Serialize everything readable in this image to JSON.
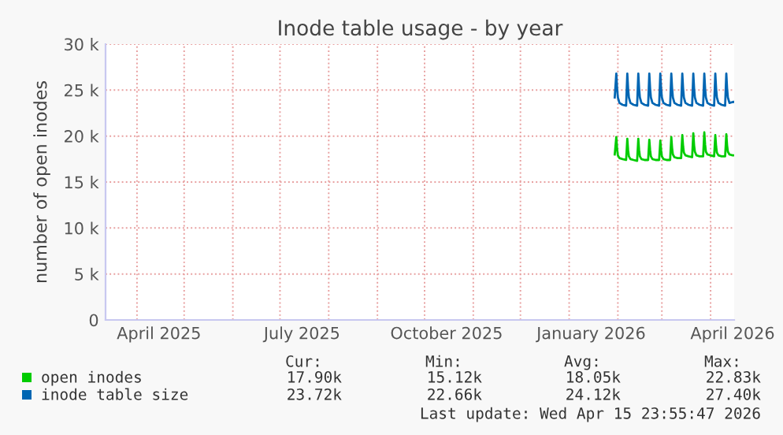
{
  "chart_data": {
    "type": "line",
    "title": "Inode table usage - by year",
    "ylabel": "number of open inodes",
    "x": [
      "2026-01-30T00:00",
      "2026-01-31T00:00",
      "2026-01-31T12:00",
      "2026-02-01",
      "2026-02-02",
      "2026-02-04",
      "2026-02-06T06:00",
      "2026-02-07T00:00",
      "2026-02-07T12:00",
      "2026-02-08",
      "2026-02-09",
      "2026-02-11",
      "2026-02-13T06:00",
      "2026-02-14T00:00",
      "2026-02-14T12:00",
      "2026-02-15",
      "2026-02-16",
      "2026-02-18",
      "2026-02-20T06:00",
      "2026-02-21T00:00",
      "2026-02-21T12:00",
      "2026-02-22",
      "2026-02-23",
      "2026-02-25",
      "2026-02-27T06:00",
      "2026-02-28T00:00",
      "2026-02-28T12:00",
      "2026-03-01",
      "2026-03-02",
      "2026-03-04",
      "2026-03-06T06:00",
      "2026-03-07T00:00",
      "2026-03-07T12:00",
      "2026-03-08",
      "2026-03-09",
      "2026-03-11",
      "2026-03-13T06:00",
      "2026-03-14T00:00",
      "2026-03-14T12:00",
      "2026-03-15",
      "2026-03-16",
      "2026-03-18",
      "2026-03-20T06:00",
      "2026-03-21T00:00",
      "2026-03-21T12:00",
      "2026-03-22",
      "2026-03-23",
      "2026-03-25",
      "2026-03-27T06:00",
      "2026-03-28T00:00",
      "2026-03-28T12:00",
      "2026-03-29",
      "2026-03-30",
      "2026-04-01",
      "2026-04-03T06:00",
      "2026-04-04T00:00",
      "2026-04-04T12:00",
      "2026-04-05",
      "2026-04-06",
      "2026-04-08",
      "2026-04-10T06:00",
      "2026-04-11T00:00",
      "2026-04-11T12:00",
      "2026-04-12",
      "2026-04-13",
      "2026-04-15",
      "2026-04-15T23:00"
    ],
    "series": [
      {
        "name": "open inodes",
        "color": "#00cc00",
        "values": [
          18000,
          19900,
          18600,
          17900,
          17600,
          17500,
          17400,
          19700,
          18500,
          17800,
          17500,
          17400,
          17300,
          19700,
          18500,
          17800,
          17500,
          17400,
          17400,
          19600,
          18500,
          17800,
          17500,
          17400,
          17400,
          19500,
          18500,
          17800,
          17500,
          17400,
          17400,
          19900,
          18700,
          18000,
          17700,
          17600,
          17600,
          20100,
          18900,
          18200,
          17900,
          17800,
          17700,
          20300,
          19000,
          18300,
          17900,
          17800,
          17800,
          20400,
          19100,
          18300,
          18000,
          17900,
          17800,
          20100,
          18900,
          18200,
          17900,
          17800,
          17800,
          20200,
          19000,
          18300,
          18000,
          17900,
          17900
        ]
      },
      {
        "name": "inode table size",
        "color": "#0066b3",
        "values": [
          24200,
          26800,
          25200,
          24200,
          23600,
          23400,
          23300,
          26800,
          25200,
          24200,
          23600,
          23400,
          23300,
          26800,
          25200,
          24200,
          23600,
          23400,
          23300,
          26800,
          25200,
          24200,
          23600,
          23400,
          23300,
          26800,
          25200,
          24200,
          23600,
          23400,
          23300,
          26800,
          25200,
          24200,
          23600,
          23400,
          23300,
          26800,
          25200,
          24200,
          23600,
          23400,
          23300,
          26800,
          25200,
          24200,
          23600,
          23400,
          23300,
          26800,
          25200,
          24200,
          23600,
          23400,
          23300,
          26800,
          25200,
          24200,
          23600,
          23400,
          23300,
          26800,
          25200,
          24200,
          23600,
          23700,
          23720
        ]
      }
    ],
    "xlim": [
      "2025-03-11T23:55",
      "2026-04-15T23:55"
    ],
    "xticks": [
      {
        "value": "2025-04-15",
        "label": "April 2025"
      },
      {
        "value": "2025-07-15",
        "label": "July 2025"
      },
      {
        "value": "2025-10-15",
        "label": "October 2025"
      },
      {
        "value": "2026-01-15",
        "label": "January 2026"
      },
      {
        "value": "2026-04-15",
        "label": "April 2026"
      }
    ],
    "ylim": [
      0,
      30000
    ],
    "yticks": [
      0,
      {
        "value": 5000,
        "label": "5 k"
      },
      {
        "value": 10000,
        "label": "10 k"
      },
      {
        "value": 15000,
        "label": "15 k"
      },
      {
        "value": 20000,
        "label": "20 k"
      },
      {
        "value": 25000,
        "label": "25 k"
      },
      {
        "value": 30000,
        "label": "30 k"
      }
    ],
    "grid": true,
    "legend": "bottom",
    "marker": "none",
    "line_style": "solid",
    "annotations": [
      "Cur:",
      "Min:",
      "Avg:",
      "Max:",
      "17.90k",
      "15.12k",
      "18.05k",
      "22.83k",
      "23.72k",
      "22.66k",
      "24.12k",
      "27.40k",
      "Last update: Wed Apr 15 23:55:47 2026"
    ]
  }
}
